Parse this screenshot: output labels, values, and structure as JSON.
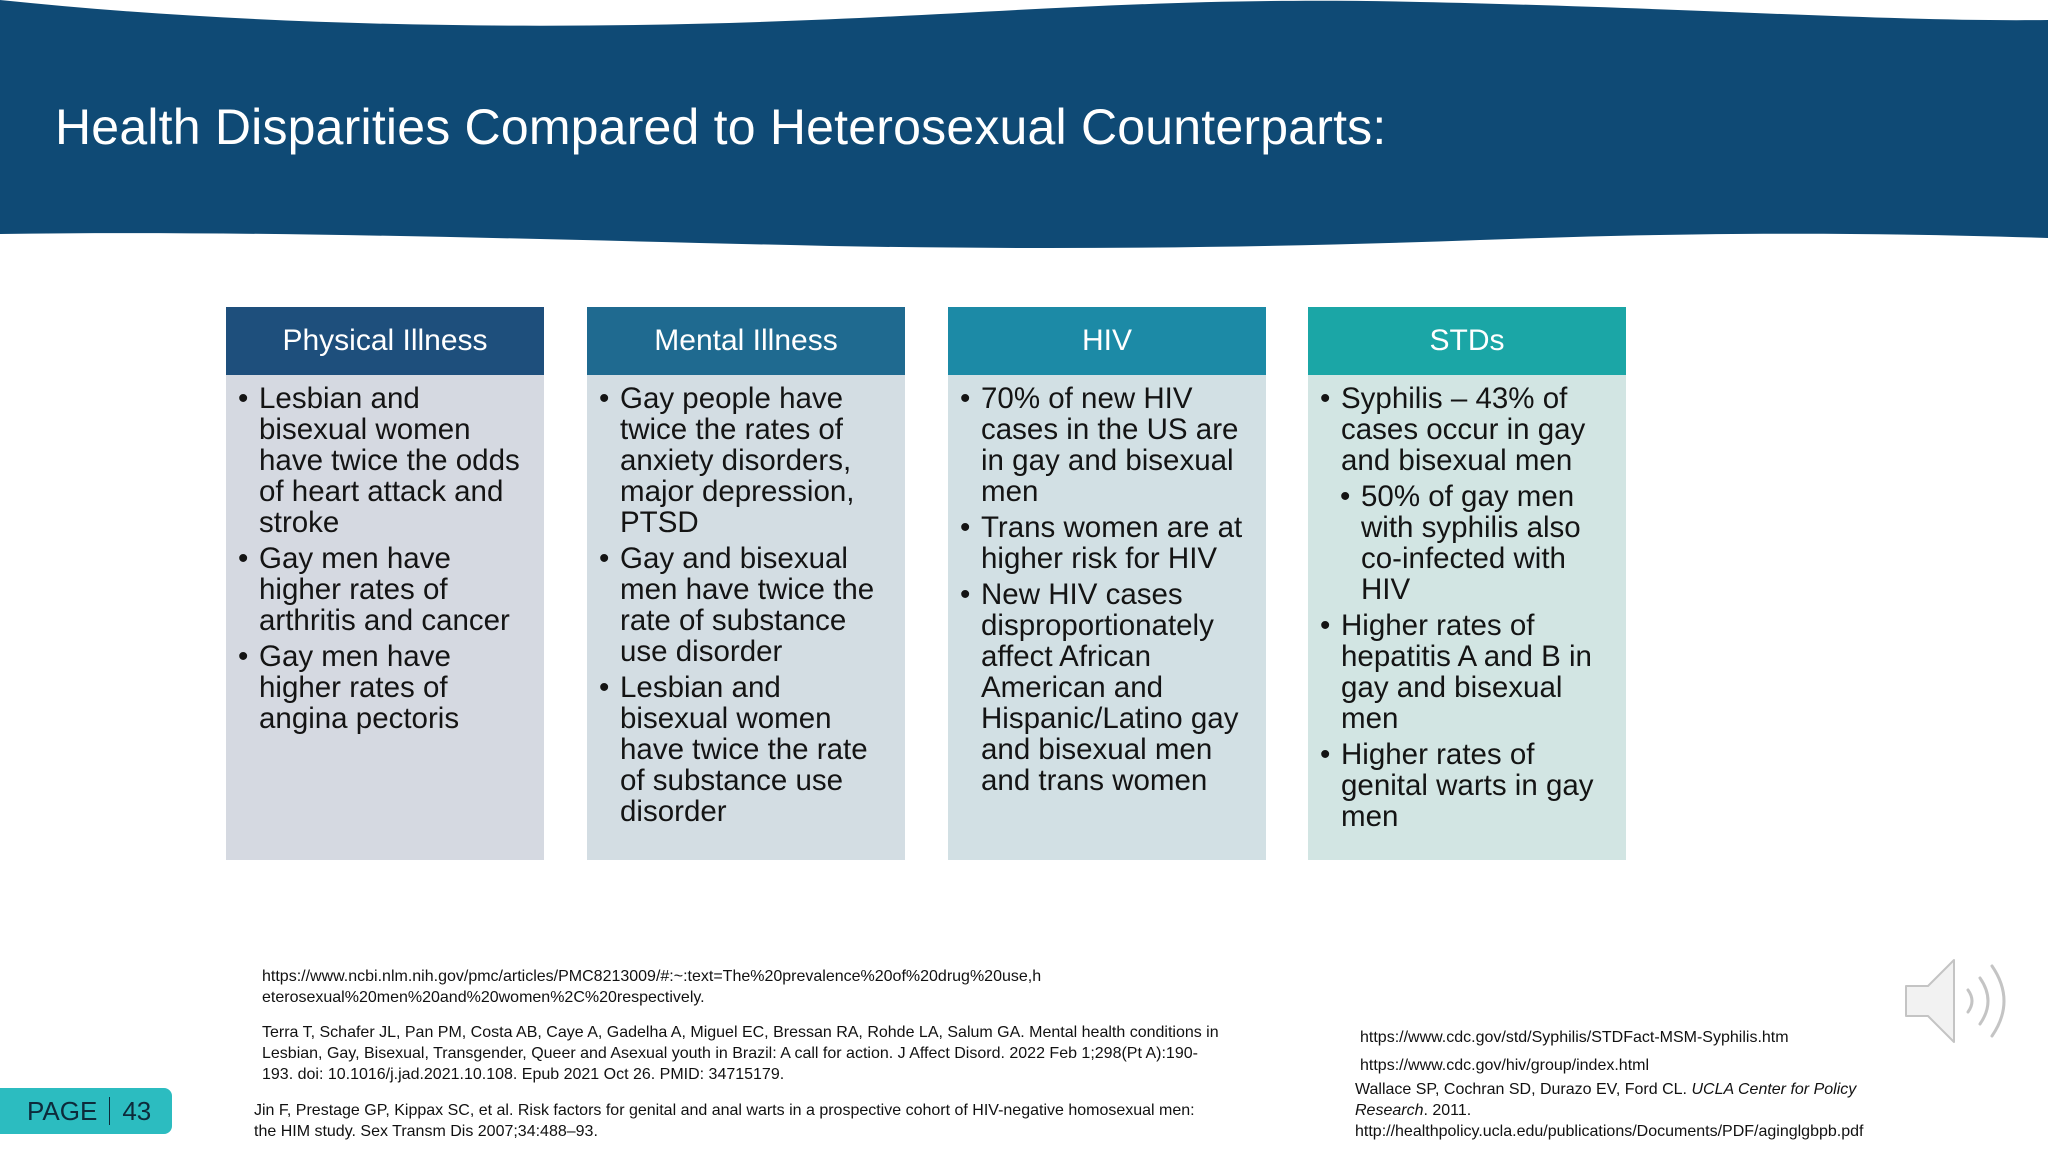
{
  "title": "Health Disparities Compared to Heterosexual Counterparts:",
  "colors": {
    "banner": "#0f4a75",
    "physical": "#1e4f7c",
    "mental": "#1f6a90",
    "hiv": "#1c8aa6",
    "stds": "#1ba6a6",
    "badge": "#2cbcc0"
  },
  "columns": [
    {
      "header": "Physical Illness",
      "items": [
        "Lesbian and bisexual women have twice the odds of heart attack and stroke",
        "Gay men have higher rates of arthritis and cancer",
        "Gay men have higher rates of angina pectoris"
      ]
    },
    {
      "header": "Mental Illness",
      "items": [
        "Gay people have twice the rates of anxiety disorders, major depression, PTSD",
        "Gay and bisexual men have twice the rate of substance use disorder",
        "Lesbian and bisexual women have twice the rate of substance use disorder"
      ]
    },
    {
      "header": "HIV",
      "items": [
        "70% of new HIV cases in the US are in gay and bisexual men",
        "Trans women are at higher risk for HIV",
        "New HIV cases disproportionately affect African American and Hispanic/Latino gay and bisexual men and trans women"
      ]
    },
    {
      "header": "STDs",
      "items": [
        "Syphilis – 43% of cases occur in gay and bisexual men",
        "50% of gay men with syphilis also co-infected with HIV",
        "Higher rates of hepatitis A and B in gay and bisexual men",
        "Higher rates of genital warts in gay men"
      ]
    }
  ],
  "references": {
    "ref1_line1": "https://www.ncbi.nlm.nih.gov/pmc/articles/PMC8213009/#:~:text=The%20prevalence%20of%20drug%20use,h",
    "ref1_line2": "eterosexual%20men%20and%20women%2C%20respectively.",
    "ref2_line1": "Terra T, Schafer JL, Pan PM, Costa AB, Caye A, Gadelha A, Miguel EC, Bressan RA, Rohde LA, Salum GA. Mental health conditions in",
    "ref2_line2": "Lesbian, Gay, Bisexual, Transgender, Queer and Asexual youth in Brazil: A call for action. J Affect Disord. 2022 Feb 1;298(Pt A):190-",
    "ref2_line3": "193. doi: 10.1016/j.jad.2021.10.108. Epub 2021 Oct 26. PMID: 34715179.",
    "ref3_line1": "Jin F, Prestage GP, Kippax SC, et al. Risk factors for genital and anal warts in a prospective cohort of HIV-negative homosexual men:",
    "ref3_line2": "the HIM study. Sex Transm Dis 2007;34:488–93.",
    "ref4": "https://www.cdc.gov/std/Syphilis/STDFact-MSM-Syphilis.htm",
    "ref5": "https://www.cdc.gov/hiv/group/index.html",
    "ref6_authors": "Wallace SP, Cochran SD, Durazo EV, Ford CL. ",
    "ref6_journal1": "UCLA Center for Policy",
    "ref6_journal2": "Research",
    "ref6_year": ". 2011.",
    "ref6_url": "http://healthpolicy.ucla.edu/publications/Documents/PDF/aginglgbpb.pdf"
  },
  "footer": {
    "page_label": "PAGE",
    "page_number": "43"
  },
  "icons": {
    "audio": "speaker-icon"
  }
}
